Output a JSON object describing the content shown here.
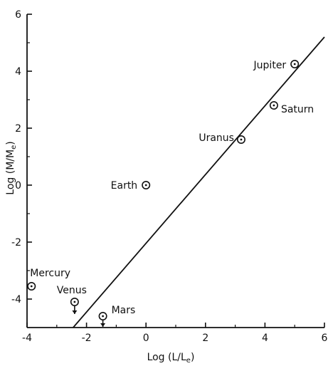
{
  "chart_data": {
    "type": "scatter",
    "xlabel": "Log (L/L",
    "xlabel_sub": "e",
    "xlabel_end": ")",
    "ylabel": "Log (M/M",
    "ylabel_sub": "e",
    "ylabel_end": ")",
    "xlim": [
      -4,
      6
    ],
    "ylim": [
      -5,
      6
    ],
    "x_ticks": [
      -4,
      -2,
      0,
      2,
      4,
      6
    ],
    "x_tick_labels": [
      "-4",
      "-2",
      "0",
      "2",
      "4",
      "6"
    ],
    "y_ticks": [
      -4,
      -2,
      0,
      2,
      4,
      6
    ],
    "y_tick_labels": [
      "-4",
      "-2",
      "0",
      "2",
      "4",
      "6"
    ],
    "grid": false,
    "points": [
      {
        "label": "Jupiter",
        "x": 5.0,
        "y": 4.25
      },
      {
        "label": "Saturn",
        "x": 4.3,
        "y": 2.8
      },
      {
        "label": "Uranus",
        "x": 3.2,
        "y": 1.6
      },
      {
        "label": "Earth",
        "x": 0.0,
        "y": 0.0
      },
      {
        "label": "Mercury",
        "x": -3.85,
        "y": -3.55
      },
      {
        "label": "Venus",
        "x": -2.4,
        "y": -4.1,
        "upper_limit": true
      },
      {
        "label": "Mars",
        "x": -1.45,
        "y": -4.6,
        "upper_limit": true
      }
    ],
    "fit_line": {
      "x": [
        -2.45,
        6.0
      ],
      "y": [
        -5.0,
        5.2
      ]
    }
  }
}
